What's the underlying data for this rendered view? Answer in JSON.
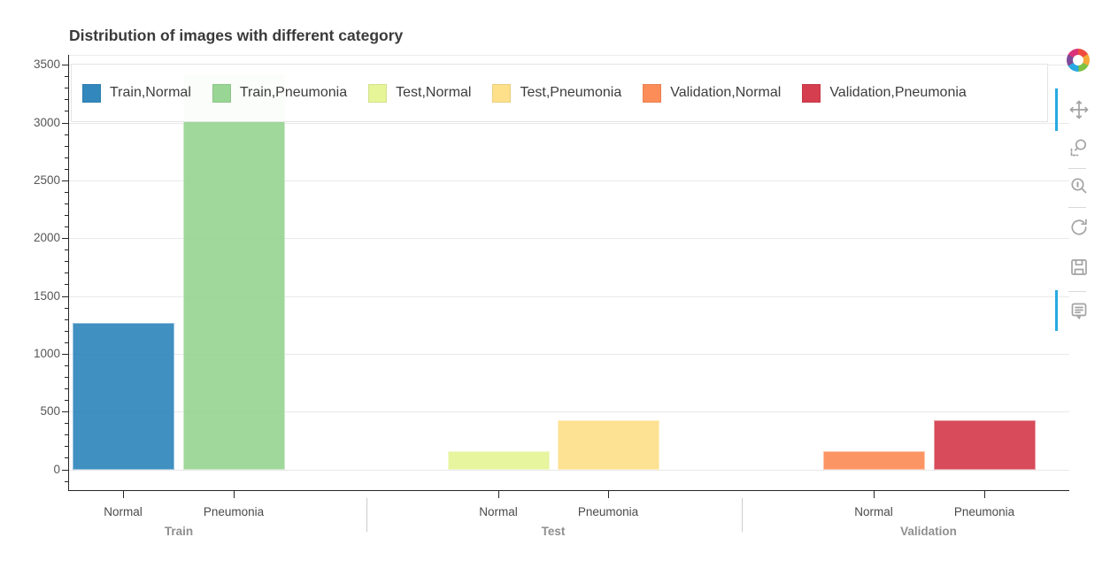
{
  "page_title": "Distribution of images with different category",
  "chart_data": {
    "type": "bar",
    "title": "Distribution of images with different category",
    "groups": [
      "Train",
      "Test",
      "Validation"
    ],
    "categories_per_group": [
      "Normal",
      "Pneumonia"
    ],
    "series": [
      {
        "factor": "Train,Normal",
        "group": "Train",
        "category": "Normal",
        "value": 1266,
        "color": "#3288bd"
      },
      {
        "factor": "Train,Pneumonia",
        "group": "Train",
        "category": "Pneumonia",
        "value": 3418,
        "color": "#99d594"
      },
      {
        "factor": "Test,Normal",
        "group": "Test",
        "category": "Normal",
        "value": 158,
        "color": "#e6f598"
      },
      {
        "factor": "Test,Pneumonia",
        "group": "Test",
        "category": "Pneumonia",
        "value": 427,
        "color": "#fee08b"
      },
      {
        "factor": "Validation,Normal",
        "group": "Validation",
        "category": "Normal",
        "value": 159,
        "color": "#fc8d59"
      },
      {
        "factor": "Validation,Pneumonia",
        "group": "Validation",
        "category": "Pneumonia",
        "value": 428,
        "color": "#d53e4f"
      }
    ],
    "xlabel": "",
    "ylabel": "",
    "ylim": [
      0,
      3500
    ],
    "yticks": [
      0,
      500,
      1000,
      1500,
      2000,
      2500,
      3000,
      3500
    ],
    "y_minor_tick_interval": 100,
    "grid": "horizontal",
    "legend_position": "top-inside-row",
    "palette": "Spectral6"
  },
  "legend": {
    "items": [
      {
        "label": "Train,Normal",
        "color": "#3288bd"
      },
      {
        "label": "Train,Pneumonia",
        "color": "#99d594"
      },
      {
        "label": "Test,Normal",
        "color": "#e6f598"
      },
      {
        "label": "Test,Pneumonia",
        "color": "#fee08b"
      },
      {
        "label": "Validation,Normal",
        "color": "#fc8d59"
      },
      {
        "label": "Validation,Pneumonia",
        "color": "#d53e4f"
      }
    ]
  },
  "toolbar": {
    "logo": "bokeh-logo",
    "active_color": "#26aae1",
    "tools": [
      {
        "name": "pan",
        "icon": "move-icon",
        "active": true
      },
      {
        "name": "box-zoom",
        "icon": "box-zoom-icon",
        "active": false
      },
      {
        "name": "wheel-zoom",
        "icon": "wheel-zoom-icon",
        "active": false
      },
      {
        "name": "reset",
        "icon": "reset-icon",
        "active": false
      },
      {
        "name": "save",
        "icon": "save-icon",
        "active": false
      },
      {
        "name": "hover",
        "icon": "hover-icon",
        "active": true
      }
    ]
  },
  "style_colors": {
    "grid": "#e9e9e9",
    "axis": "#262626",
    "tick_label": "#565656",
    "group_label": "#8f8f8f",
    "title": "#3a3a3a",
    "toolbar_icon": "#a3a3a3"
  }
}
